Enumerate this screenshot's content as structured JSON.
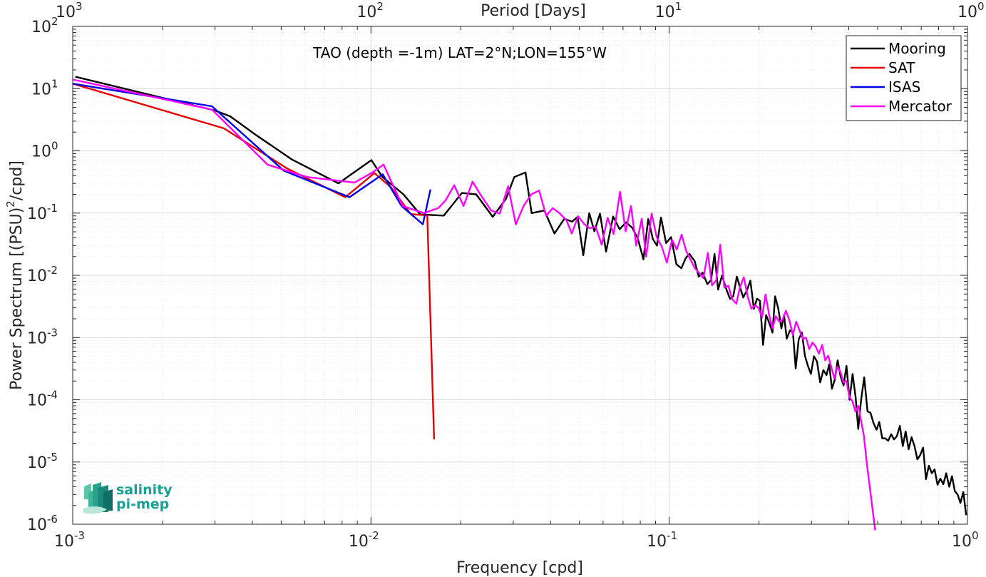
{
  "chart_data": {
    "type": "line",
    "annotation": "TAO (depth =-1m) LAT=2°N;LON=155°W",
    "xlabel": "Frequency [cpd]",
    "ylabel": "Power Spectrum [(PSU)²/cpd]",
    "top_xlabel": "Period [Days]",
    "xscale": "log",
    "yscale": "log",
    "xlim": [
      0.001,
      1
    ],
    "ylim": [
      1e-06,
      100
    ],
    "grid": true,
    "x_ticks": [
      {
        "value": 0.001,
        "base": "10",
        "exp": "-3"
      },
      {
        "value": 0.01,
        "base": "10",
        "exp": "-2"
      },
      {
        "value": 0.1,
        "base": "10",
        "exp": "-1"
      },
      {
        "value": 1,
        "base": "10",
        "exp": "0"
      }
    ],
    "top_ticks": [
      {
        "value": 0.001,
        "base": "10",
        "exp": "3"
      },
      {
        "value": 0.01,
        "base": "10",
        "exp": "2"
      },
      {
        "value": 0.1,
        "base": "10",
        "exp": "1"
      },
      {
        "value": 1,
        "base": "10",
        "exp": "0"
      }
    ],
    "y_ticks": [
      {
        "value": 100,
        "base": "10",
        "exp": "2"
      },
      {
        "value": 10,
        "base": "10",
        "exp": "1"
      },
      {
        "value": 1,
        "base": "10",
        "exp": "0"
      },
      {
        "value": 0.1,
        "base": "10",
        "exp": "-1"
      },
      {
        "value": 0.01,
        "base": "10",
        "exp": "-2"
      },
      {
        "value": 0.001,
        "base": "10",
        "exp": "-3"
      },
      {
        "value": 0.0001,
        "base": "10",
        "exp": "-4"
      },
      {
        "value": 1e-05,
        "base": "10",
        "exp": "-5"
      },
      {
        "value": 1e-06,
        "base": "10",
        "exp": "-6"
      }
    ],
    "legend_position": "top-right",
    "series": [
      {
        "name": "Mooring",
        "color": "#000000",
        "x": [
          0.00102,
          0.003,
          0.00337,
          0.00405,
          0.00542,
          0.00778,
          0.01003,
          0.01093,
          0.01285,
          0.01463,
          0.01755,
          0.02017,
          0.02253,
          0.02561,
          0.02838,
          0.03025,
          0.03297,
          0.03457,
          0.03813,
          0.04124,
          0.04452,
          0.04725,
          0.04932,
          0.0515,
          0.05395,
          0.05612,
          0.05862,
          0.06142,
          0.06486,
          0.0682,
          0.07165,
          0.07517,
          0.07845,
          0.08195,
          0.08501,
          0.08815,
          0.09097,
          0.09384,
          0.0976,
          0.10142,
          0.10574,
          0.10981,
          0.11366,
          0.11693,
          0.12164,
          0.12565,
          0.12938,
          0.13424,
          0.13817,
          0.14186,
          0.1459,
          0.15034,
          0.15517,
          0.15985,
          0.16392,
          0.16854,
          0.17314,
          0.1772,
          0.18237,
          0.18713,
          0.19224,
          0.1969,
          0.20139,
          0.20643,
          0.21135,
          0.21659,
          0.2219,
          0.22649,
          0.23219,
          0.23775,
          0.24258,
          0.24779,
          0.25399,
          0.25993,
          0.26548,
          0.27178,
          0.27858,
          0.28506,
          0.29182,
          0.2985,
          0.30567,
          0.31302,
          0.32073,
          0.32885,
          0.33674,
          0.34401,
          0.35114,
          0.35906,
          0.36697,
          0.37518,
          0.38416,
          0.39289,
          0.40226,
          0.41199,
          0.42156,
          0.43037,
          0.43989,
          0.4506,
          0.4622,
          0.47282,
          0.48429,
          0.49561,
          0.50617,
          0.51795,
          0.52988,
          0.54256,
          0.5549,
          0.56707,
          0.57974,
          0.59356,
          0.60689,
          0.62052,
          0.63489,
          0.64939,
          0.66444,
          0.67967,
          0.69468,
          0.71012,
          0.72596,
          0.74222,
          0.75932,
          0.77609,
          0.79362,
          0.81127,
          0.82979,
          0.84876,
          0.86837,
          0.88752,
          0.90698,
          0.92703,
          0.94714,
          0.9687,
          0.99
        ],
        "y": [
          15.5,
          4.44,
          3.6,
          1.9,
          0.73,
          0.3,
          0.71,
          0.38,
          0.2,
          0.095,
          0.091,
          0.21,
          0.2,
          0.087,
          0.17,
          0.38,
          0.45,
          0.1,
          0.11,
          0.047,
          0.081,
          0.073,
          0.087,
          0.021,
          0.1,
          0.051,
          0.098,
          0.024,
          0.088,
          0.055,
          0.071,
          0.058,
          0.039,
          0.018,
          0.08,
          0.038,
          0.03,
          0.085,
          0.033,
          0.041,
          0.015,
          0.013,
          0.019,
          0.022,
          0.017,
          0.0095,
          0.011,
          0.0072,
          0.0084,
          0.022,
          0.0059,
          0.0099,
          0.0061,
          0.0042,
          0.0046,
          0.0095,
          0.0062,
          0.0044,
          0.0058,
          0.0082,
          0.0029,
          0.0042,
          0.0039,
          0.00076,
          0.0023,
          0.0017,
          0.0012,
          0.0046,
          0.0029,
          0.0014,
          0.0023,
          0.00096,
          0.0013,
          0.0012,
          0.00032,
          0.00094,
          0.0012,
          0.00051,
          0.00035,
          0.00026,
          0.0005,
          0.00041,
          0.00019,
          0.0003,
          0.00025,
          0.00037,
          0.00015,
          0.00021,
          0.00043,
          0.00024,
          0.00017,
          0.00035,
          0.0001,
          0.00026,
          0.00011,
          3.4e-05,
          9.9e-05,
          0.00023,
          6.5e-05,
          6.2e-05,
          4.2e-05,
          3.3e-05,
          4.4e-05,
          2.4e-05,
          2.4e-05,
          2.2e-05,
          2.8e-05,
          2.3e-05,
          2.6e-05,
          3.8e-05,
          1.8e-05,
          3.1e-05,
          1.6e-05,
          2.5e-05,
          1.8e-05,
          1.1e-05,
          1.3e-05,
          1.7e-05,
          5.3e-06,
          8.7e-06,
          6.6e-06,
          7.6e-06,
          4.3e-06,
          5.4e-06,
          4.4e-06,
          6.6e-06,
          4e-06,
          5.9e-06,
          3.4e-06,
          3e-06,
          2.2e-06,
          3.3e-06,
          1.4e-06
        ]
      },
      {
        "name": "SAT",
        "color": "#e60000",
        "x": [
          0.001,
          0.00321,
          0.00524,
          0.0082,
          0.01027,
          0.01166,
          0.01361,
          0.01544,
          0.01628
        ],
        "y": [
          12,
          2.3,
          0.52,
          0.18,
          0.44,
          0.26,
          0.096,
          0.092,
          2.3e-05
        ]
      },
      {
        "name": "ISAS",
        "color": "#0000e6",
        "x": [
          0.001,
          0.00293,
          0.0051,
          0.00847,
          0.01095,
          0.01266,
          0.01493,
          0.01583
        ],
        "y": [
          12,
          5.2,
          0.48,
          0.18,
          0.42,
          0.13,
          0.066,
          0.24
        ]
      },
      {
        "name": "Mercator",
        "color": "#ff00ff",
        "x": [
          0.001,
          0.00293,
          0.0045,
          0.0061,
          0.00881,
          0.01011,
          0.01102,
          0.01276,
          0.01505,
          0.01681,
          0.01779,
          0.01902,
          0.02044,
          0.02191,
          0.02342,
          0.02529,
          0.02701,
          0.02883,
          0.03059,
          0.03249,
          0.03448,
          0.03663,
          0.03868,
          0.04065,
          0.04284,
          0.04521,
          0.04716,
          0.04948,
          0.05197,
          0.05408,
          0.05664,
          0.05939,
          0.06215,
          0.06511,
          0.06842,
          0.07144,
          0.07442,
          0.07752,
          0.08088,
          0.08369,
          0.08731,
          0.09076,
          0.09442,
          0.09818,
          0.10222,
          0.10605,
          0.11005,
          0.11383,
          0.11781,
          0.12182,
          0.12586,
          0.13016,
          0.1347,
          0.13913,
          0.14369,
          0.14831,
          0.15301,
          0.15785,
          0.16266,
          0.16791,
          0.17281,
          0.17788,
          0.18347,
          0.18869,
          0.19391,
          0.19916,
          0.20479,
          0.21025,
          0.21607,
          0.22176,
          0.22765,
          0.23372,
          0.23972,
          0.24619,
          0.25287,
          0.25964,
          0.26658,
          0.27358,
          0.28052,
          0.2874,
          0.29476,
          0.30214,
          0.30981,
          0.31768,
          0.32576,
          0.3333,
          0.34104,
          0.34981,
          0.35806,
          0.36652,
          0.37519,
          0.38383,
          0.39269,
          0.40186,
          0.4113,
          0.42086,
          0.43066,
          0.43981,
          0.44961,
          0.4597,
          0.46987,
          0.48007,
          0.4905
        ],
        "y": [
          14,
          4.6,
          0.6,
          0.38,
          0.31,
          0.45,
          0.6,
          0.13,
          0.1,
          0.12,
          0.16,
          0.28,
          0.13,
          0.32,
          0.19,
          0.11,
          0.098,
          0.27,
          0.066,
          0.13,
          0.2,
          0.23,
          0.09,
          0.12,
          0.1,
          0.077,
          0.047,
          0.089,
          0.066,
          0.057,
          0.06,
          0.031,
          0.084,
          0.046,
          0.22,
          0.051,
          0.13,
          0.03,
          0.081,
          0.02,
          0.098,
          0.041,
          0.029,
          0.016,
          0.037,
          0.026,
          0.045,
          0.025,
          0.018,
          0.013,
          0.011,
          0.009,
          0.023,
          0.0069,
          0.0082,
          0.031,
          0.0064,
          0.0068,
          0.0041,
          0.0035,
          0.0065,
          0.0093,
          0.0045,
          0.0029,
          0.0033,
          0.003,
          0.0021,
          0.0049,
          0.0024,
          0.0014,
          0.0022,
          0.0018,
          0.0019,
          0.0027,
          0.0019,
          0.0011,
          0.0018,
          0.0013,
          0.00095,
          0.001,
          0.00065,
          0.00083,
          0.00072,
          0.00055,
          0.00076,
          0.00043,
          0.00051,
          0.00033,
          0.00022,
          0.00034,
          0.00028,
          0.00019,
          0.0002,
          0.00011,
          9.5e-05,
          6.5e-05,
          8e-05,
          4.6e-05,
          2.6e-05,
          9.5e-06,
          4.1e-06,
          1.8e-06,
          8e-07
        ]
      }
    ]
  },
  "logo": {
    "line1": "salinity",
    "line2": "pi-mep"
  }
}
